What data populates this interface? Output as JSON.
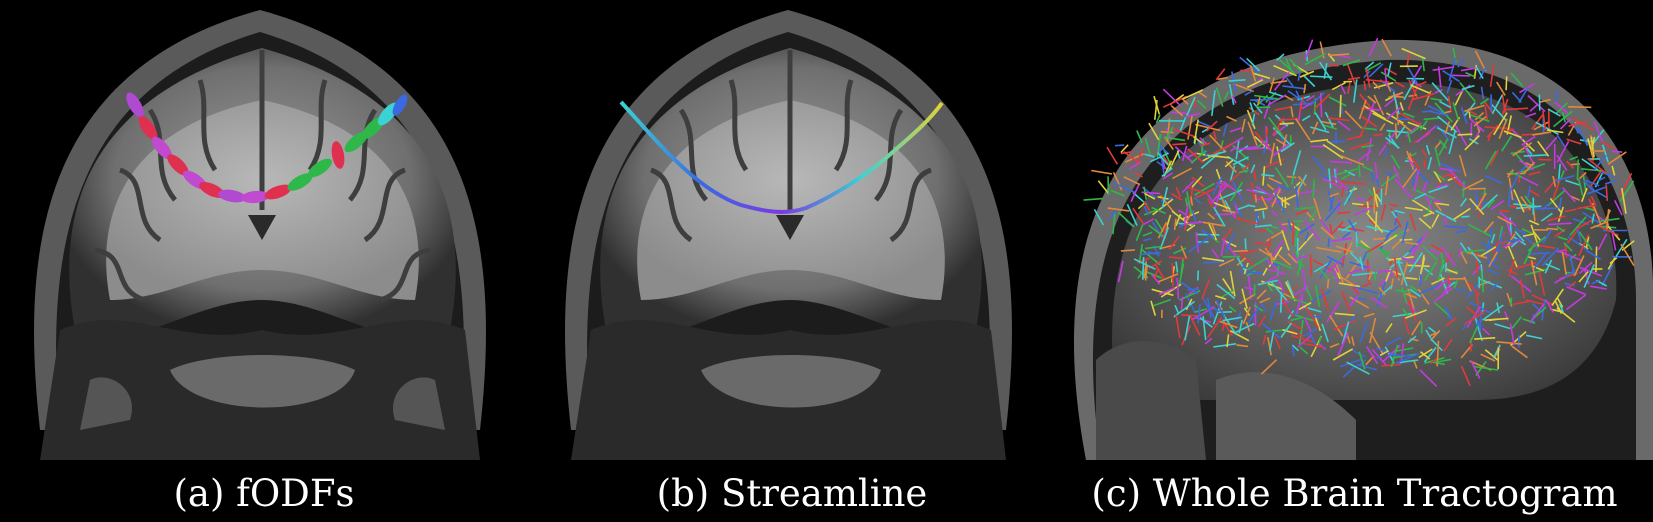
{
  "figure": {
    "panels": [
      {
        "caption": "(a) fODFs",
        "view": "coronal MRI slice with fODF glyphs along a tract"
      },
      {
        "caption": "(b) Streamline",
        "view": "coronal MRI slice with a single colored streamline"
      },
      {
        "caption": "(c) Whole Brain Tractogram",
        "view": "sagittal MRI slice with whole-brain fiber tracts"
      }
    ],
    "colors": {
      "background": "#000000",
      "caption_text": "#ffffff",
      "tissue": "#8a8a8a",
      "fiber_palette": [
        "#e23a3a",
        "#2fb84a",
        "#3a6ae2",
        "#e2d23a",
        "#3ad2d2",
        "#c63ae2",
        "#e2893a"
      ]
    }
  }
}
